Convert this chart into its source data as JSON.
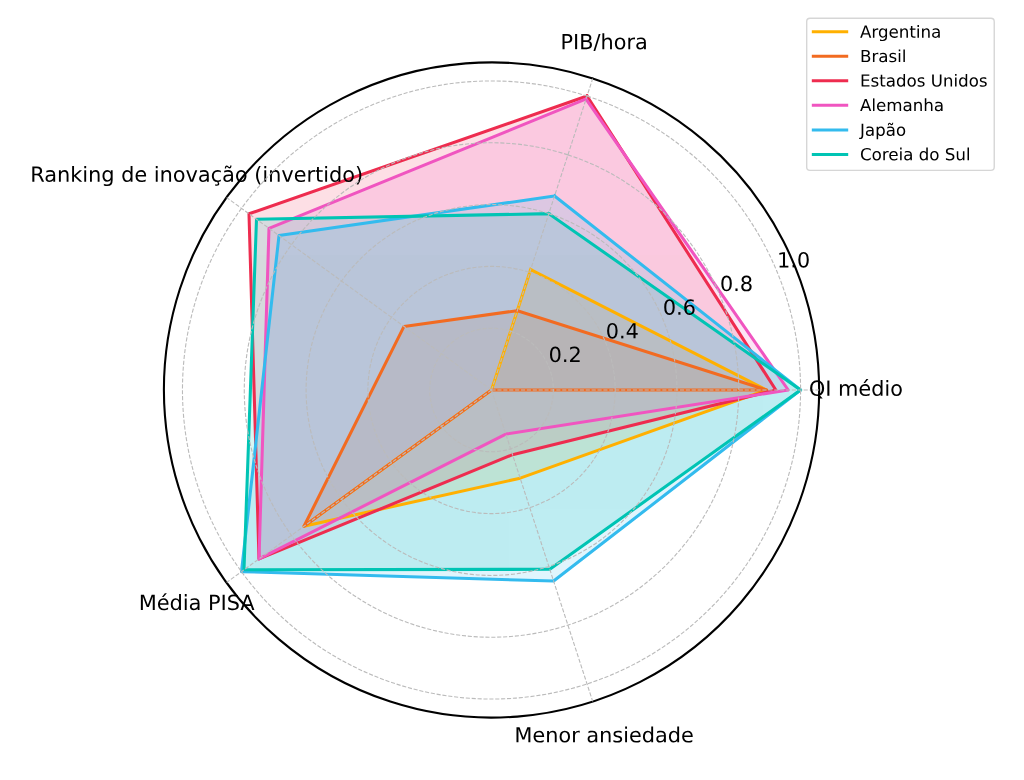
{
  "chart_data": {
    "type": "radar",
    "categories": [
      "PIB/hora",
      "QI médio",
      "Menor ansiedade",
      "Média PISA",
      "Ranking de inovação (invertido)"
    ],
    "series": [
      {
        "name": "Argentina",
        "color": "#ffb000",
        "values": [
          0.41,
          0.89,
          0.3,
          0.75,
          0
        ]
      },
      {
        "name": "Brasil",
        "color": "#f26b21",
        "values": [
          0.27,
          0.89,
          0,
          0.75,
          0.35
        ]
      },
      {
        "name": "Estados Unidos",
        "color": "#ee2c4f",
        "values": [
          1.0,
          0.92,
          0.22,
          0.93,
          0.97
        ]
      },
      {
        "name": "Alemanha",
        "color": "#f055c0",
        "values": [
          0.99,
          0.96,
          0.15,
          0.93,
          0.89
        ]
      },
      {
        "name": "Japão",
        "color": "#33bbee",
        "values": [
          0.66,
          1.0,
          0.65,
          1.0,
          0.85
        ]
      },
      {
        "name": "Coreia do Sul",
        "color": "#00c4b4",
        "values": [
          0.6,
          1.0,
          0.61,
          0.99,
          0.94
        ]
      }
    ],
    "ylim": [
      0,
      1.06
    ],
    "yticks": [
      0.2,
      0.4,
      0.6,
      0.8,
      {
        "value": 1,
        "label": "1.0"
      }
    ],
    "grid": true,
    "legend": "top right"
  }
}
